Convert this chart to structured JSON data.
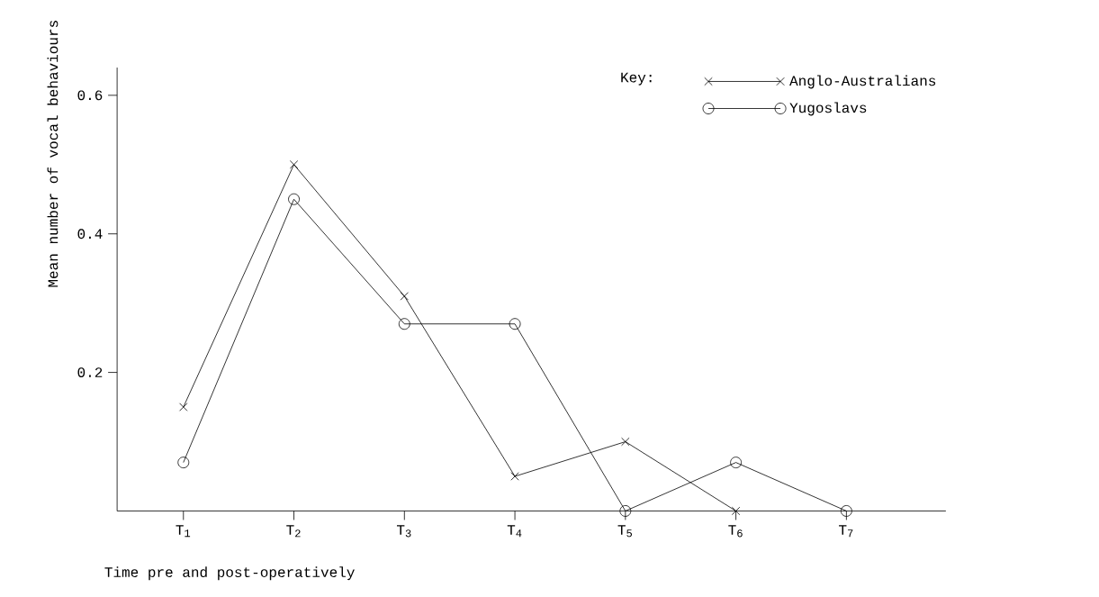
{
  "chart_data": {
    "type": "line",
    "xlabel": "Time pre and post-operatively",
    "ylabel": "Mean number of vocal behaviours",
    "legend_title": "Key:",
    "categories": [
      "T$_{1}$",
      "T$_{2}$",
      "T$_{3}$",
      "T$_{4}$",
      "T$_{5}$",
      "T$_{6}$",
      "T$_{7}$"
    ],
    "ylim": [
      0,
      0.64
    ],
    "yticks": [
      {
        "value": 0.2,
        "label": "0.2"
      },
      {
        "value": 0.4,
        "label": "0.4"
      },
      {
        "value": 0.6,
        "label": "0.6"
      }
    ],
    "legend": "top right",
    "grid": false,
    "series": [
      {
        "name": "Anglo-Australians",
        "color": "#000000",
        "marker": "cross",
        "values": [
          0.15,
          0.5,
          0.31,
          0.05,
          0.1,
          0,
          null
        ]
      },
      {
        "name": "Yugoslavs",
        "color": "#000000",
        "marker": "circle",
        "values": [
          0.07,
          0.45,
          0.27,
          0.27,
          0,
          0.07,
          0
        ]
      }
    ]
  }
}
